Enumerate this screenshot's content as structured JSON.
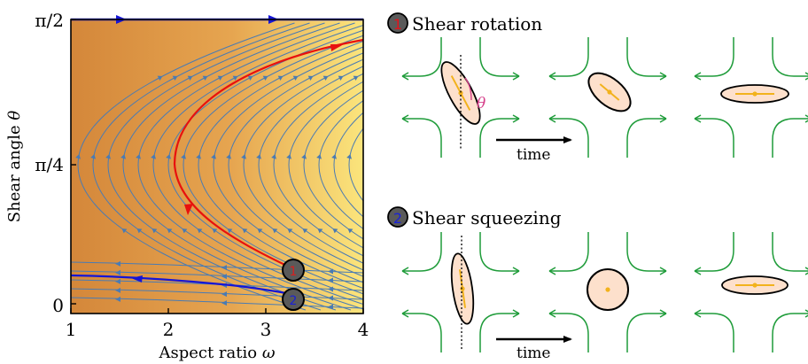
{
  "left_plot": {
    "xlabel_text": "Aspect ratio",
    "xlabel_symbol": "ω",
    "ylabel_text": "Shear angle",
    "ylabel_symbol": "θ",
    "x_ticks": [
      "1",
      "2",
      "3",
      "4"
    ],
    "y_ticks": [
      "0",
      "π/4",
      "π/2"
    ],
    "markers": [
      {
        "number": "1",
        "number_color": "#d62020",
        "omega": 3.25,
        "theta_label": "near 0.07π"
      },
      {
        "number": "2",
        "number_color": "#1a22d6",
        "omega": 3.25,
        "theta_label": "near 0.02π"
      }
    ],
    "background_gradient": [
      "#d4873a",
      "#fbe57c"
    ],
    "stream_color": "#4a7bb3",
    "curve_colors": {
      "red": "#e8110e",
      "blue": "#1515d6"
    }
  },
  "panels": [
    {
      "number": "1",
      "number_color": "#e0141d",
      "title": "Shear rotation",
      "time_label": "time",
      "theta_label": "θ"
    },
    {
      "number": "2",
      "number_color": "#1a22d6",
      "title": "Shear squeezing",
      "time_label": "time"
    }
  ],
  "colors": {
    "flow_lines": "#1f9c3a",
    "ellipse_fill": "#fde0cc",
    "axis_dot": "#f2b21c",
    "theta_color": "#d6408a",
    "marker_fill": "#5a5a5a"
  }
}
